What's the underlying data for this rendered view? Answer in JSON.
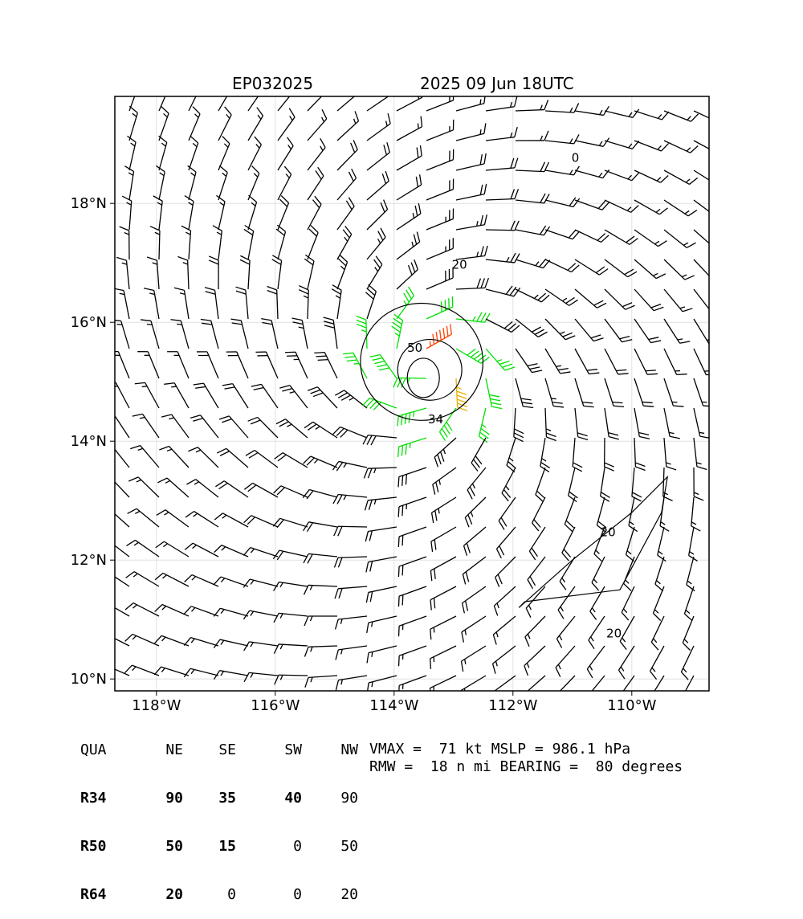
{
  "header": {
    "storm_id": "EP032025",
    "datetime": "2025 09 Jun 18UTC"
  },
  "map": {
    "lon_range": [
      -118.7,
      -108.7
    ],
    "lat_range": [
      9.8,
      19.8
    ],
    "lon_ticks": [
      {
        "value": -118,
        "label": "118°W"
      },
      {
        "value": -116,
        "label": "116°W"
      },
      {
        "value": -114,
        "label": "114°W"
      },
      {
        "value": -112,
        "label": "112°W"
      },
      {
        "value": -110,
        "label": "110°W"
      }
    ],
    "lat_ticks": [
      {
        "value": 10,
        "label": "10°N"
      },
      {
        "value": 12,
        "label": "12°N"
      },
      {
        "value": 14,
        "label": "14°N"
      },
      {
        "value": 16,
        "label": "16°N"
      },
      {
        "value": 18,
        "label": "18°N"
      }
    ],
    "grid": true,
    "field": "surface wind barbs (kt) with isotach contours",
    "storm_center": {
      "lon": -113.4,
      "lat": 15.2
    },
    "rmw_nmi": 18,
    "barb_colors": {
      "below_34": "#000000",
      "34_to_50": "#00e000",
      "50_to_64": "#e8b000",
      "64_plus": "#ff4000"
    },
    "contours": [
      {
        "value": 20,
        "label": "20"
      },
      {
        "value": 34,
        "label": "34"
      },
      {
        "value": 50,
        "label": "50"
      },
      {
        "value": 0,
        "label": "0"
      }
    ]
  },
  "quadrant_table": {
    "headers": [
      "QUA",
      "NE",
      "SE",
      "SW",
      "NW"
    ],
    "rows": [
      {
        "label": "R34",
        "values": [
          "90",
          "35",
          "40",
          "90"
        ]
      },
      {
        "label": "R50",
        "values": [
          "50",
          "15",
          "0",
          "50"
        ]
      },
      {
        "label": "R64",
        "values": [
          "20",
          "0",
          "0",
          "20"
        ]
      }
    ]
  },
  "stats": {
    "line1": "VMAX =  71 kt MSLP = 986.1 hPa",
    "line2": "RMW =  18 n mi BEARING =  80 degrees"
  }
}
